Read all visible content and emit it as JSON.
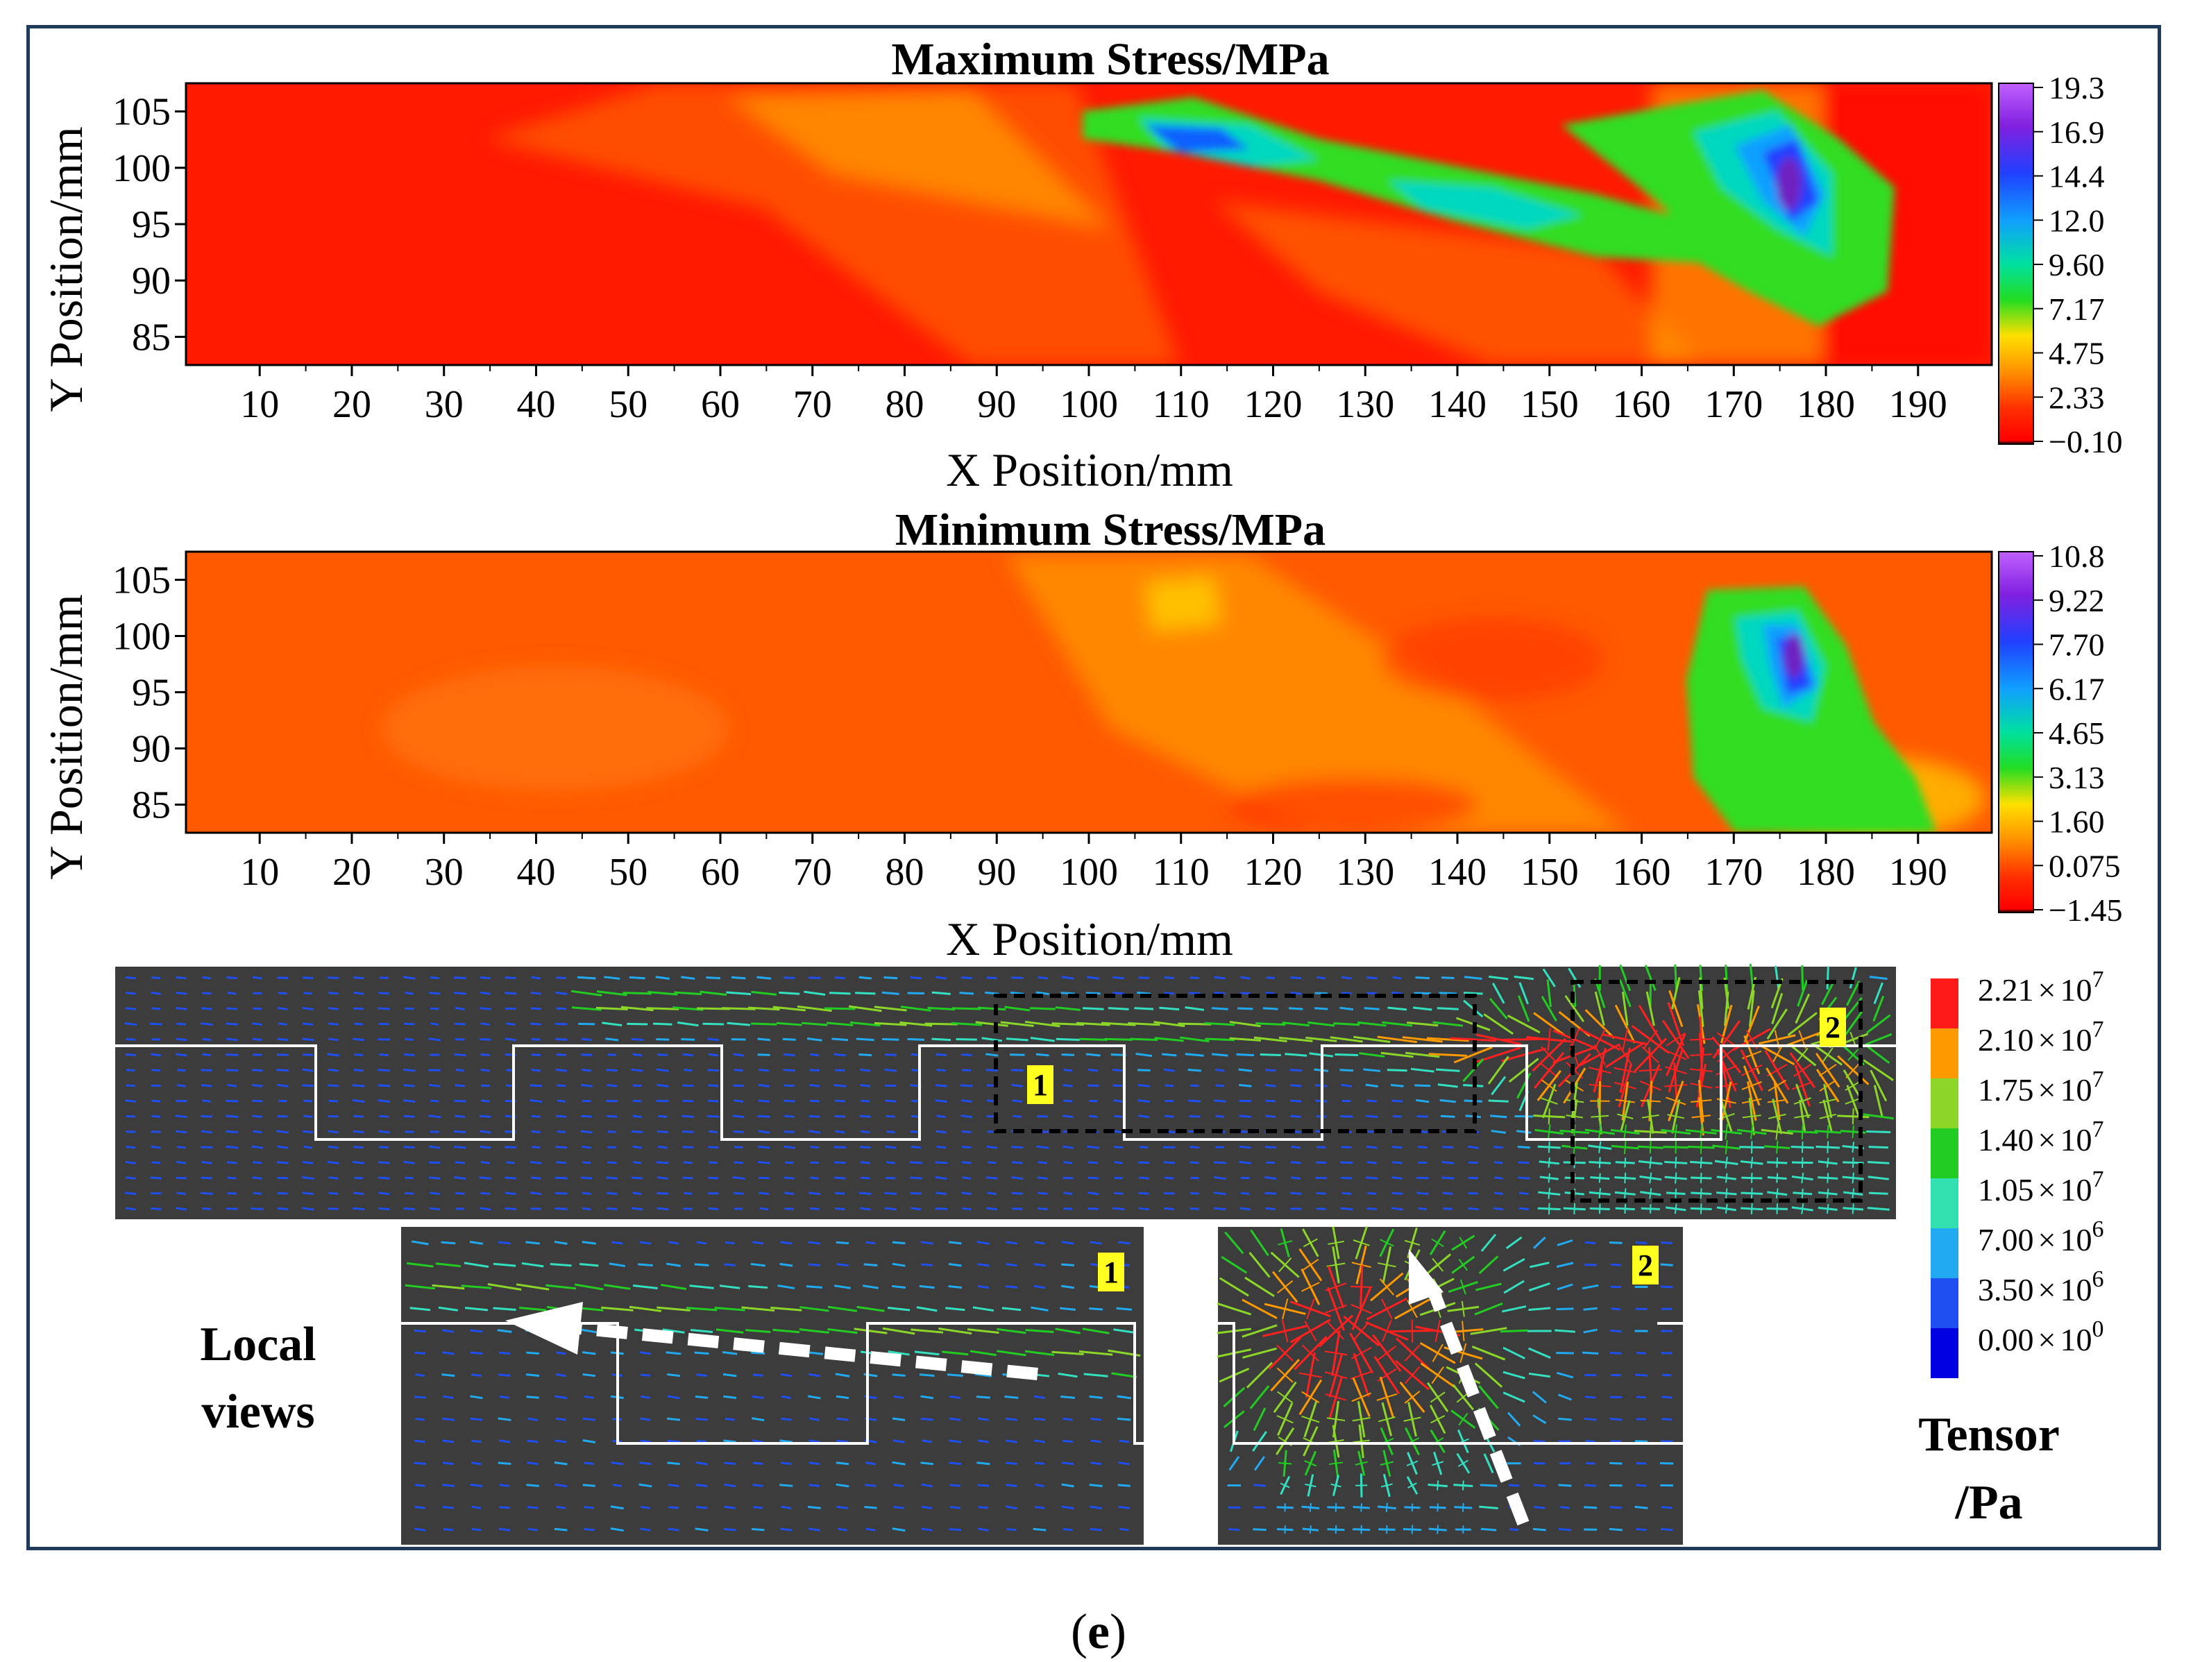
{
  "caption": {
    "open": "(",
    "letter": "e",
    "close": ")"
  },
  "colors": {
    "frame": "#1f3a5a",
    "field_bg": "#3c3c3c",
    "contour_map": [
      "#ff0000",
      "#ff6000",
      "#ffc000",
      "#f8f040",
      "#22dd22",
      "#00e0a0",
      "#10a0ff",
      "#3030ff",
      "#9020e0"
    ]
  },
  "chart_data": [
    {
      "type": "heatmap",
      "title": "Maximum Stress/MPa",
      "xlabel": "X Position/mm",
      "ylabel": "Y Position/mm",
      "x_ticks": [
        10,
        20,
        30,
        40,
        50,
        60,
        70,
        80,
        90,
        100,
        110,
        120,
        130,
        140,
        150,
        160,
        170,
        180,
        190
      ],
      "y_ticks": [
        85,
        90,
        95,
        100,
        105
      ],
      "xlim": [
        2,
        198
      ],
      "ylim": [
        82.5,
        107.5
      ],
      "colorbar": [
        "19.3",
        "16.9",
        "14.4",
        "12.0",
        "9.60",
        "7.17",
        "4.75",
        "2.33",
        "−0.10"
      ],
      "features": [
        {
          "x": 148,
          "y": 100,
          "value": 9.6
        },
        {
          "x": 112,
          "y": 101.5,
          "value": 12.0
        },
        {
          "x": 140,
          "y": 96,
          "value": 9.6
        },
        {
          "x": 175,
          "y": 98,
          "value": 19.3
        }
      ]
    },
    {
      "type": "heatmap",
      "title": "Minimum Stress/MPa",
      "xlabel": "X Position/mm",
      "ylabel": "Y Position/mm",
      "x_ticks": [
        10,
        20,
        30,
        40,
        50,
        60,
        70,
        80,
        90,
        100,
        110,
        120,
        130,
        140,
        150,
        160,
        170,
        180,
        190
      ],
      "y_ticks": [
        85,
        90,
        95,
        100,
        105
      ],
      "xlim": [
        2,
        198
      ],
      "ylim": [
        82.5,
        107.5
      ],
      "colorbar": [
        "10.8",
        "9.22",
        "7.70",
        "6.17",
        "4.65",
        "3.13",
        "1.60",
        "0.075",
        "−1.45"
      ],
      "features": [
        {
          "x": 175,
          "y": 96,
          "value": 10.8
        },
        {
          "x": 172,
          "y": 93,
          "value": 4.65
        }
      ]
    },
    {
      "type": "vector-field",
      "legend_title": [
        "Tensor",
        "/Pa"
      ],
      "colorbar": [
        {
          "mantissa": "2.21",
          "exp": "7",
          "color": "#ff1a1a"
        },
        {
          "mantissa": "2.10",
          "exp": "7",
          "color": "#ff9900"
        },
        {
          "mantissa": "1.75",
          "exp": "7",
          "color": "#8cd62a"
        },
        {
          "mantissa": "1.40",
          "exp": "7",
          "color": "#22cc22"
        },
        {
          "mantissa": "1.05",
          "exp": "7",
          "color": "#33e0b0"
        },
        {
          "mantissa": "7.00",
          "exp": "6",
          "color": "#22aaf0"
        },
        {
          "mantissa": "3.50",
          "exp": "6",
          "color": "#1f4ff0"
        },
        {
          "mantissa": "0.00",
          "exp": "0",
          "color": "#0000e0"
        }
      ],
      "times_sign": "×",
      "base": "10",
      "region_labels": [
        "1",
        "2"
      ],
      "local_views_label": [
        "Local",
        "views"
      ]
    }
  ]
}
